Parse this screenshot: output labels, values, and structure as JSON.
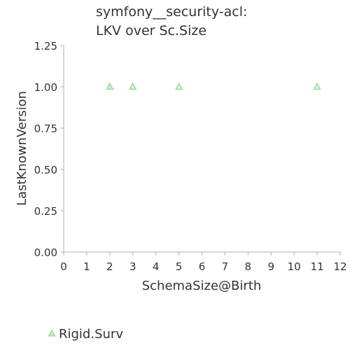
{
  "chart_data": {
    "type": "scatter",
    "title_lines": [
      "symfony__security-acl:",
      "LKV over Sc.Size"
    ],
    "xlabel": "SchemaSize@Birth",
    "ylabel": "LastKnownVersion",
    "xlim": [
      0,
      12
    ],
    "ylim": [
      0,
      1.25
    ],
    "xticks": [
      "0",
      "1",
      "2",
      "3",
      "4",
      "5",
      "6",
      "7",
      "8",
      "9",
      "10",
      "11",
      "12"
    ],
    "yticks": [
      "0.00",
      "0.25",
      "0.50",
      "0.75",
      "1.00",
      "1.25"
    ],
    "grid": false,
    "legend_position": "bottom-left",
    "series": [
      {
        "name": "Rigid.Surv",
        "marker": "triangle",
        "color": "#7fcf7f",
        "points": [
          {
            "x": 2,
            "y": 1.0
          },
          {
            "x": 2,
            "y": 1.0
          },
          {
            "x": 3,
            "y": 1.0
          },
          {
            "x": 5,
            "y": 1.0
          },
          {
            "x": 11,
            "y": 1.0
          }
        ]
      }
    ]
  }
}
